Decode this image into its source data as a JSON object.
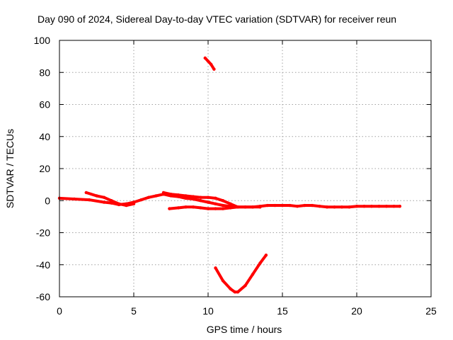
{
  "chart_data": {
    "type": "line",
    "title": "Day 090 of 2024, Sidereal Day-to-day VTEC variation (SDTVAR) for receiver reun",
    "xlabel": "GPS time / hours",
    "ylabel": "SDTVAR / TECUs",
    "xlim": [
      0,
      25
    ],
    "ylim": [
      -60,
      100
    ],
    "xticks": [
      0,
      5,
      10,
      15,
      20,
      25
    ],
    "yticks": [
      -60,
      -40,
      -20,
      0,
      20,
      40,
      60,
      80,
      100
    ],
    "grid": true,
    "series_color": "#ff0000",
    "series": [
      {
        "name": "trace-1",
        "x": [
          0,
          1,
          2,
          3,
          3.5,
          4,
          4.5,
          5,
          5.5,
          6,
          6.5,
          7,
          7.5,
          8,
          8.5,
          9,
          9.5,
          10,
          10.5,
          11,
          11.5,
          12,
          12.5,
          13,
          13.5,
          14,
          14.5,
          15,
          15.5,
          16,
          16.5,
          17,
          17.5,
          18,
          18.5,
          19,
          19.5,
          20,
          20.5,
          21,
          21.5,
          22,
          22.5,
          22.9
        ],
        "y": [
          1.5,
          1,
          0.5,
          -1,
          -1.5,
          -2.5,
          -2,
          -1,
          0.5,
          2,
          3,
          4,
          3,
          2.5,
          1.5,
          1,
          0,
          -1,
          -2,
          -3,
          -3.5,
          -4,
          -4,
          -4,
          -3.5,
          -3,
          -3,
          -3,
          -3,
          -3.5,
          -3,
          -3,
          -3.5,
          -4,
          -4,
          -4,
          -4,
          -3.5,
          -3.5,
          -3.5,
          -3.5,
          -3.5,
          -3.5,
          -3.5
        ]
      },
      {
        "name": "trace-2",
        "x": [
          1.8,
          2.5,
          3,
          3.5,
          4,
          4.5,
          5
        ],
        "y": [
          5,
          3,
          2,
          0,
          -2,
          -3,
          -2
        ]
      },
      {
        "name": "trace-3",
        "x": [
          7.4,
          8,
          8.5,
          9,
          9.5,
          10,
          10.5,
          11,
          11.5,
          12,
          12.5,
          13,
          13.5
        ],
        "y": [
          -5,
          -4.5,
          -4,
          -4,
          -4.5,
          -5,
          -5,
          -5,
          -4.5,
          -4,
          -4,
          -4,
          -4
        ]
      },
      {
        "name": "trace-4",
        "x": [
          7,
          7.5,
          8,
          8.5,
          9,
          9.5,
          10,
          10.5,
          11,
          11.5,
          12
        ],
        "y": [
          5,
          4,
          3.5,
          3,
          2.5,
          2,
          2,
          1.5,
          0,
          -2,
          -4
        ]
      },
      {
        "name": "trace-5",
        "x": [
          9.8,
          10,
          10.2,
          10.4
        ],
        "y": [
          89,
          87,
          85,
          82
        ]
      },
      {
        "name": "trace-6",
        "x": [
          10.5,
          11,
          11.5,
          11.8,
          12,
          12.5,
          13,
          13.5,
          13.9
        ],
        "y": [
          -42,
          -50,
          -55,
          -57,
          -57,
          -53,
          -46,
          -39,
          -34
        ]
      }
    ]
  }
}
